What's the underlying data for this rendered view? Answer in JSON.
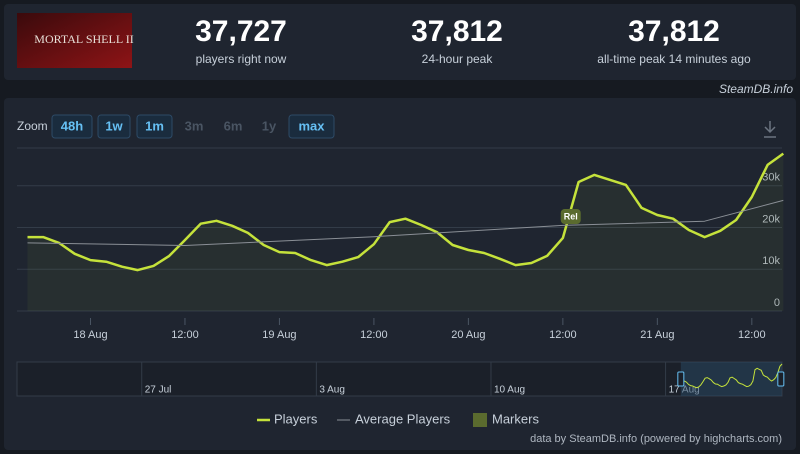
{
  "header": {
    "logo_text": "MORTAL SHELL II",
    "site": "SteamDB.info",
    "stats": [
      {
        "value": "37,727",
        "label": "players right now"
      },
      {
        "value": "37,812",
        "label": "24-hour peak"
      },
      {
        "value": "37,812",
        "label": "all-time peak 14 minutes ago"
      }
    ]
  },
  "zoom": {
    "label": "Zoom",
    "buttons": [
      {
        "text": "48h",
        "enabled": true
      },
      {
        "text": "1w",
        "enabled": true
      },
      {
        "text": "1m",
        "enabled": true
      },
      {
        "text": "3m",
        "enabled": false
      },
      {
        "text": "6m",
        "enabled": false
      },
      {
        "text": "1y",
        "enabled": false
      },
      {
        "text": "max",
        "enabled": true
      }
    ]
  },
  "chart_data": {
    "type": "line",
    "x": [
      "17 Aug 16:00",
      "17 Aug 18:00",
      "17 Aug 20:00",
      "17 Aug 22:00",
      "18 Aug 00:00",
      "18 Aug 02:00",
      "18 Aug 04:00",
      "18 Aug 06:00",
      "18 Aug 08:00",
      "18 Aug 10:00",
      "18 Aug 12:00",
      "18 Aug 14:00",
      "18 Aug 16:00",
      "18 Aug 18:00",
      "18 Aug 20:00",
      "18 Aug 22:00",
      "19 Aug 00:00",
      "19 Aug 02:00",
      "19 Aug 04:00",
      "19 Aug 06:00",
      "19 Aug 08:00",
      "19 Aug 10:00",
      "19 Aug 12:00",
      "19 Aug 14:00",
      "19 Aug 16:00",
      "19 Aug 18:00",
      "19 Aug 20:00",
      "19 Aug 22:00",
      "20 Aug 00:00",
      "20 Aug 02:00",
      "20 Aug 04:00",
      "20 Aug 06:00",
      "20 Aug 08:00",
      "20 Aug 10:00",
      "20 Aug 12:00",
      "20 Aug 14:00",
      "20 Aug 16:00",
      "20 Aug 18:00",
      "20 Aug 20:00",
      "20 Aug 22:00",
      "21 Aug 00:00",
      "21 Aug 02:00",
      "21 Aug 04:00",
      "21 Aug 06:00",
      "21 Aug 08:00",
      "21 Aug 10:00",
      "21 Aug 12:00",
      "21 Aug 14:00",
      "21 Aug 16:00"
    ],
    "series": [
      {
        "name": "Players",
        "color": "#c5e23b",
        "values": [
          17700,
          17700,
          16300,
          13700,
          12200,
          11800,
          10600,
          9800,
          10800,
          13200,
          17000,
          20900,
          21600,
          20400,
          18700,
          15800,
          14100,
          13900,
          12200,
          11000,
          11800,
          12900,
          16000,
          21300,
          22100,
          20600,
          18900,
          15800,
          14600,
          13900,
          12500,
          11000,
          11500,
          13200,
          17500,
          30900,
          32600,
          31400,
          30200,
          24700,
          23000,
          22100,
          19400,
          17700,
          19200,
          21800,
          27300,
          35000,
          37700
        ]
      },
      {
        "name": "Average Players",
        "color": "#8a8f96",
        "x": [
          "17 Aug 16:00",
          "18 Aug 12:00",
          "19 Aug 12:00",
          "20 Aug 12:00",
          "21 Aug 06:00",
          "21 Aug 16:00"
        ],
        "values": [
          16300,
          15700,
          17800,
          20500,
          21500,
          26500
        ]
      }
    ],
    "markers_legend": "Markers",
    "annotations": [
      {
        "label": "Rel",
        "x": "20 Aug 13:00"
      }
    ],
    "xlim": [
      "17 Aug 14:40",
      "21 Aug 15:50"
    ],
    "xticks": [
      {
        "value": "18 Aug 00:00",
        "label": "18 Aug"
      },
      {
        "value": "18 Aug 12:00",
        "label": "12:00"
      },
      {
        "value": "19 Aug 00:00",
        "label": "19 Aug"
      },
      {
        "value": "19 Aug 12:00",
        "label": "12:00"
      },
      {
        "value": "20 Aug 00:00",
        "label": "20 Aug"
      },
      {
        "value": "20 Aug 12:00",
        "label": "12:00"
      },
      {
        "value": "21 Aug 00:00",
        "label": "21 Aug"
      },
      {
        "value": "21 Aug 12:00",
        "label": "12:00"
      }
    ],
    "ylim": [
      0,
      40000
    ],
    "yticks": [
      0,
      {
        "value": 10000,
        "label": "10k"
      },
      {
        "value": 20000,
        "label": "20k"
      },
      {
        "value": 30000,
        "label": "30k"
      }
    ],
    "grid": true,
    "navigator": {
      "xlim": [
        "22 Jul 00:00",
        "21 Aug 16:00"
      ],
      "xticks": [
        "27 Jul",
        "3 Aug",
        "10 Aug",
        "17 Aug"
      ]
    },
    "credit": "data by SteamDB.info (powered by highcharts.com)"
  }
}
